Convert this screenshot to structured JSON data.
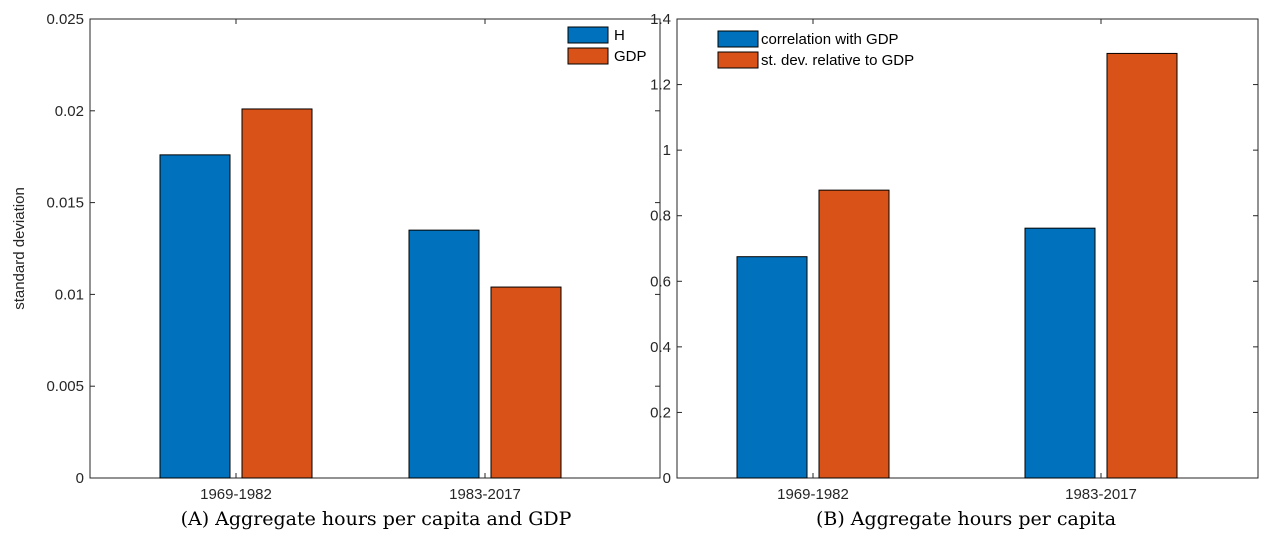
{
  "colors": {
    "blue": "#0072BD",
    "orange": "#D95319",
    "axis": "#262626"
  },
  "chart_data": [
    {
      "type": "bar",
      "caption": "(A) Aggregate hours per capita and GDP",
      "categories": [
        "1969-1982",
        "1983-2017"
      ],
      "series": [
        {
          "name": "H",
          "values": [
            0.0176,
            0.0135
          ]
        },
        {
          "name": "GDP",
          "values": [
            0.0201,
            0.0104
          ]
        }
      ],
      "yticks": [
        "0",
        "0.005",
        "0.01",
        "0.015",
        "0.02",
        "0.025"
      ],
      "ylim": [
        0,
        0.025
      ],
      "xlabel": "",
      "ylabel": "standard deviation",
      "legend": "top-right",
      "grid": false
    },
    {
      "type": "bar",
      "caption": "(B) Aggregate hours per capita",
      "categories": [
        "1969-1982",
        "1983-2017"
      ],
      "series": [
        {
          "name": "correlation with GDP",
          "values": [
            0.675,
            0.762
          ]
        },
        {
          "name": "st. dev. relative to GDP",
          "values": [
            0.878,
            1.295
          ]
        }
      ],
      "yticks": [
        "0",
        "0.2",
        "0.4",
        "0.6",
        "0.8",
        "1",
        "1.2",
        "1.4"
      ],
      "ylim": [
        0,
        1.4
      ],
      "xlabel": "",
      "ylabel": "",
      "legend": "top-left",
      "grid": false
    }
  ]
}
